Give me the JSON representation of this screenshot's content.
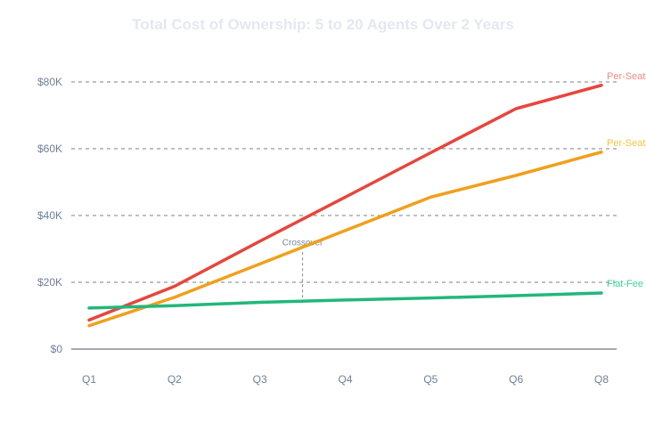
{
  "chart_data": {
    "type": "line",
    "title": "Total Cost of Ownership: 5 to 20 Agents Over 2 Years",
    "xlabel": "",
    "ylabel": "",
    "categories": [
      "Q1",
      "Q2",
      "Q3",
      "Q4",
      "Q5",
      "Q6",
      "Q8"
    ],
    "ylim": [
      0,
      80000
    ],
    "y_ticks": [
      0,
      20000,
      40000,
      60000,
      80000
    ],
    "y_tick_labels": [
      "$0",
      "$20K",
      "$40K",
      "$60K",
      "$80K"
    ],
    "grid": "horizontal dashed",
    "series": [
      {
        "name": "Per-Seat",
        "color": "#e8453c",
        "label_color": "#f28b82",
        "values": [
          8700,
          18800,
          32300,
          45500,
          58800,
          72000,
          79000
        ]
      },
      {
        "name": "Per-Seat",
        "color": "#f0a01c",
        "label_color": "#f5c542",
        "values": [
          7000,
          15500,
          25500,
          35500,
          45500,
          52000,
          59000
        ]
      },
      {
        "name": "Flat-Fee",
        "color": "#22b77b",
        "label_color": "#3dd598",
        "values": [
          12300,
          13000,
          14000,
          14700,
          15300,
          16000,
          16800
        ]
      }
    ],
    "annotations": [
      {
        "text": "Crossover",
        "x": 2.5,
        "y_top": 29000,
        "y_bottom": 13500
      }
    ]
  }
}
